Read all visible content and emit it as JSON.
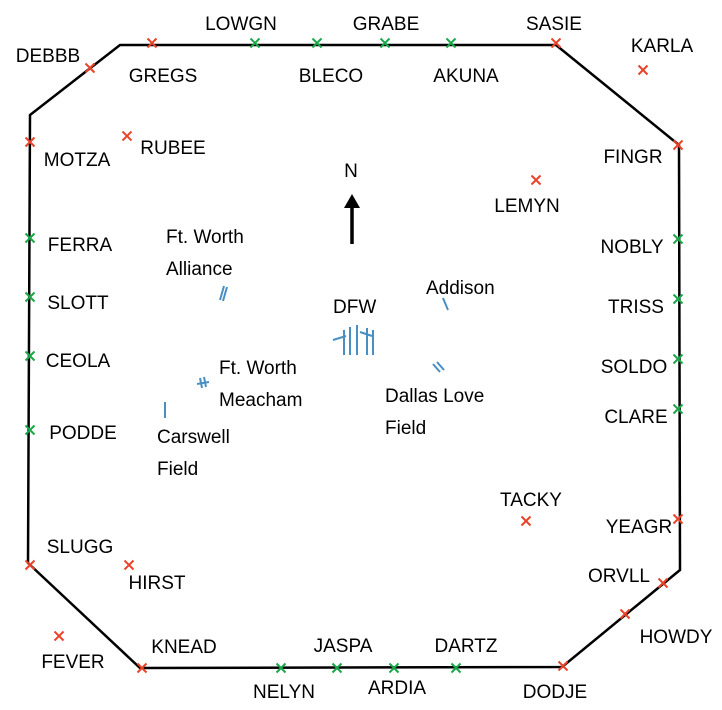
{
  "north": "N",
  "fixes": [
    {
      "label": "DEBBB"
    },
    {
      "label": "GREGS"
    },
    {
      "label": "LOWGN"
    },
    {
      "label": "BLECO"
    },
    {
      "label": "GRABE"
    },
    {
      "label": "AKUNA"
    },
    {
      "label": "SASIE"
    },
    {
      "label": "KARLA"
    },
    {
      "label": "MOTZA"
    },
    {
      "label": "RUBEE"
    },
    {
      "label": "FINGR"
    },
    {
      "label": "LEMYN"
    },
    {
      "label": "FERRA"
    },
    {
      "label": "NOBLY"
    },
    {
      "label": "SLOTT"
    },
    {
      "label": "TRISS"
    },
    {
      "label": "CEOLA"
    },
    {
      "label": "SOLDO"
    },
    {
      "label": "PODDE"
    },
    {
      "label": "CLARE"
    },
    {
      "label": "TACKY"
    },
    {
      "label": "YEAGR"
    },
    {
      "label": "SLUGG"
    },
    {
      "label": "HIRST"
    },
    {
      "label": "ORVLL"
    },
    {
      "label": "HOWDY"
    },
    {
      "label": "FEVER"
    },
    {
      "label": "KNEAD"
    },
    {
      "label": "NELYN"
    },
    {
      "label": "JASPA"
    },
    {
      "label": "ARDIA"
    },
    {
      "label": "DARTZ"
    },
    {
      "label": "DODJE"
    }
  ],
  "airports": [
    {
      "lines": [
        "Ft. Worth",
        "Alliance"
      ]
    },
    {
      "lines": [
        "DFW"
      ]
    },
    {
      "lines": [
        "Addison"
      ]
    },
    {
      "lines": [
        "Ft. Worth",
        "Meacham"
      ]
    },
    {
      "lines": [
        "Dallas Love",
        "Field"
      ]
    },
    {
      "lines": [
        "Carswell",
        "Field"
      ]
    }
  ]
}
